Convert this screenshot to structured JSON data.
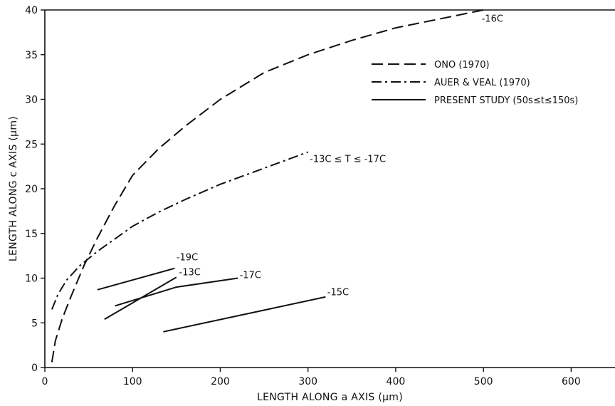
{
  "chart_data": {
    "type": "line",
    "xlabel": "LENGTH ALONG a AXIS (μm)",
    "ylabel": "LENGTH ALONG c AXIS (μm)",
    "xlim": [
      0,
      650
    ],
    "ylim": [
      0,
      40
    ],
    "x_ticks": [
      0,
      100,
      200,
      300,
      400,
      500,
      600
    ],
    "y_ticks": [
      0,
      5,
      10,
      15,
      20,
      25,
      30,
      35,
      40
    ],
    "grid": false,
    "legend_position": "top-right",
    "legend": [
      {
        "label": "ONO (1970)",
        "style": "dashed"
      },
      {
        "label": "AUER & VEAL (1970)",
        "style": "dash-dot"
      },
      {
        "label": "PRESENT STUDY (50s≤t≤150s)",
        "style": "solid"
      }
    ],
    "series": [
      {
        "style": "dashed",
        "x": [
          8,
          12,
          20,
          30,
          45,
          60,
          80,
          100,
          130,
          160,
          200,
          250,
          300,
          350,
          400,
          450,
          500
        ],
        "y": [
          0.6,
          3.0,
          5.5,
          8.0,
          11.5,
          14.5,
          18.2,
          21.5,
          24.5,
          27.0,
          30.0,
          33.0,
          35.0,
          36.6,
          38.0,
          39.0,
          40.0
        ]
      },
      {
        "style": "dash-dot",
        "x": [
          8,
          15,
          25,
          40,
          60,
          80,
          100,
          130,
          160,
          200,
          250,
          300
        ],
        "y": [
          6.5,
          8.2,
          9.8,
          11.4,
          13.0,
          14.4,
          15.8,
          17.4,
          18.8,
          20.5,
          22.3,
          24.1
        ]
      },
      {
        "style": "solid",
        "label": "-19C",
        "x": [
          60,
          148
        ],
        "y": [
          8.7,
          11.1
        ]
      },
      {
        "style": "solid",
        "label": "-13C",
        "x": [
          68,
          150
        ],
        "y": [
          5.4,
          10.1
        ]
      },
      {
        "style": "solid",
        "label": "-17C",
        "x": [
          80,
          150,
          220
        ],
        "y": [
          6.9,
          9.0,
          10.0
        ]
      },
      {
        "style": "solid",
        "label": "-15C",
        "x": [
          135,
          320
        ],
        "y": [
          4.0,
          7.9
        ]
      }
    ],
    "annotations": [
      {
        "text": "-16C",
        "x": 498,
        "y": 38.7
      },
      {
        "text": "-13C ≤ T ≤ -17C",
        "x": 302,
        "y": 23.0
      },
      {
        "text": "-19C",
        "x": 150,
        "y": 12.0
      },
      {
        "text": "-13C",
        "x": 153,
        "y": 10.3
      },
      {
        "text": "-17C",
        "x": 222,
        "y": 10.0
      },
      {
        "text": "-15C",
        "x": 322,
        "y": 8.1
      }
    ]
  }
}
